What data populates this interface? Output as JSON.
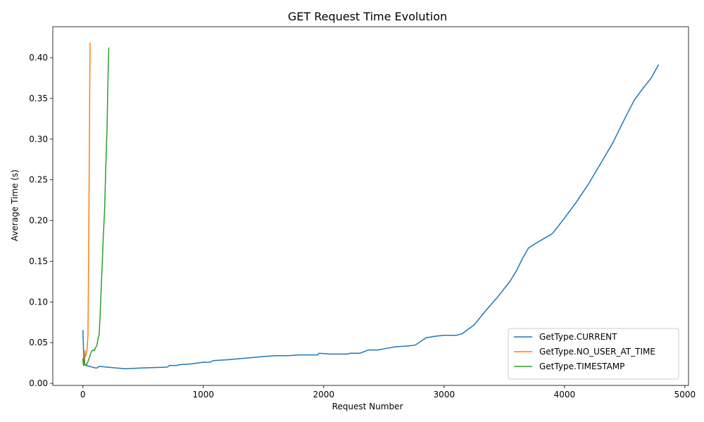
{
  "chart_data": {
    "type": "line",
    "title": "GET Request Time Evolution",
    "xlabel": "Request Number",
    "ylabel": "Average Time (s)",
    "xlim": [
      -250,
      5030
    ],
    "ylim": [
      -0.0025,
      0.438
    ],
    "x_ticks": [
      0,
      1000,
      2000,
      3000,
      4000,
      5000
    ],
    "x_tick_labels": [
      "0",
      "1000",
      "2000",
      "3000",
      "4000",
      "5000"
    ],
    "y_ticks": [
      0.0,
      0.05,
      0.1,
      0.15,
      0.2,
      0.25,
      0.3,
      0.35,
      0.4
    ],
    "y_tick_labels": [
      "0.00",
      "0.05",
      "0.10",
      "0.15",
      "0.20",
      "0.25",
      "0.30",
      "0.35",
      "0.40"
    ],
    "grid": false,
    "legend_position": "bottom-right",
    "series": [
      {
        "name": "GetType.CURRENT",
        "color": "#1f77b4",
        "points": [
          [
            0,
            0.065
          ],
          [
            3,
            0.05
          ],
          [
            8,
            0.03
          ],
          [
            15,
            0.024
          ],
          [
            30,
            0.022
          ],
          [
            50,
            0.021
          ],
          [
            80,
            0.02
          ],
          [
            100,
            0.019
          ],
          [
            120,
            0.019
          ],
          [
            135,
            0.021
          ],
          [
            200,
            0.02
          ],
          [
            350,
            0.018
          ],
          [
            500,
            0.019
          ],
          [
            700,
            0.02
          ],
          [
            720,
            0.022
          ],
          [
            780,
            0.022
          ],
          [
            800,
            0.023
          ],
          [
            900,
            0.024
          ],
          [
            1000,
            0.026
          ],
          [
            1060,
            0.026
          ],
          [
            1080,
            0.028
          ],
          [
            1200,
            0.029
          ],
          [
            1350,
            0.031
          ],
          [
            1500,
            0.033
          ],
          [
            1600,
            0.034
          ],
          [
            1700,
            0.034
          ],
          [
            1800,
            0.035
          ],
          [
            1950,
            0.035
          ],
          [
            1960,
            0.037
          ],
          [
            2050,
            0.036
          ],
          [
            2200,
            0.036
          ],
          [
            2220,
            0.037
          ],
          [
            2300,
            0.037
          ],
          [
            2370,
            0.041
          ],
          [
            2450,
            0.041
          ],
          [
            2520,
            0.043
          ],
          [
            2600,
            0.045
          ],
          [
            2700,
            0.046
          ],
          [
            2760,
            0.047
          ],
          [
            2850,
            0.056
          ],
          [
            2930,
            0.058
          ],
          [
            3000,
            0.059
          ],
          [
            3100,
            0.059
          ],
          [
            3150,
            0.061
          ],
          [
            3250,
            0.072
          ],
          [
            3350,
            0.09
          ],
          [
            3450,
            0.107
          ],
          [
            3550,
            0.126
          ],
          [
            3600,
            0.138
          ],
          [
            3650,
            0.153
          ],
          [
            3700,
            0.166
          ],
          [
            3750,
            0.171
          ],
          [
            3900,
            0.184
          ],
          [
            4000,
            0.203
          ],
          [
            4100,
            0.223
          ],
          [
            4200,
            0.245
          ],
          [
            4300,
            0.27
          ],
          [
            4400,
            0.295
          ],
          [
            4500,
            0.325
          ],
          [
            4580,
            0.348
          ],
          [
            4650,
            0.362
          ],
          [
            4720,
            0.375
          ],
          [
            4780,
            0.391
          ]
        ]
      },
      {
        "name": "GetType.NO_USER_AT_TIME",
        "color": "#ff7f0e",
        "points": [
          [
            0,
            0.03
          ],
          [
            2,
            0.026
          ],
          [
            6,
            0.022
          ],
          [
            10,
            0.025
          ],
          [
            15,
            0.028
          ],
          [
            18,
            0.04
          ],
          [
            20,
            0.033
          ],
          [
            25,
            0.034
          ],
          [
            30,
            0.037
          ],
          [
            35,
            0.042
          ],
          [
            38,
            0.05
          ],
          [
            42,
            0.06
          ],
          [
            45,
            0.11
          ],
          [
            48,
            0.17
          ],
          [
            51,
            0.23
          ],
          [
            54,
            0.3
          ],
          [
            57,
            0.37
          ],
          [
            60,
            0.418
          ]
        ]
      },
      {
        "name": "GetType.TIMESTAMP",
        "color": "#2ca02c",
        "points": [
          [
            0,
            0.03
          ],
          [
            5,
            0.022
          ],
          [
            10,
            0.03
          ],
          [
            15,
            0.024
          ],
          [
            20,
            0.022
          ],
          [
            30,
            0.023
          ],
          [
            40,
            0.026
          ],
          [
            55,
            0.032
          ],
          [
            65,
            0.037
          ],
          [
            75,
            0.04
          ],
          [
            85,
            0.041
          ],
          [
            95,
            0.04
          ],
          [
            105,
            0.044
          ],
          [
            115,
            0.046
          ],
          [
            125,
            0.054
          ],
          [
            135,
            0.06
          ],
          [
            142,
            0.08
          ],
          [
            150,
            0.11
          ],
          [
            160,
            0.145
          ],
          [
            170,
            0.182
          ],
          [
            180,
            0.212
          ],
          [
            190,
            0.265
          ],
          [
            200,
            0.31
          ],
          [
            205,
            0.35
          ],
          [
            210,
            0.385
          ],
          [
            215,
            0.412
          ]
        ]
      }
    ]
  }
}
